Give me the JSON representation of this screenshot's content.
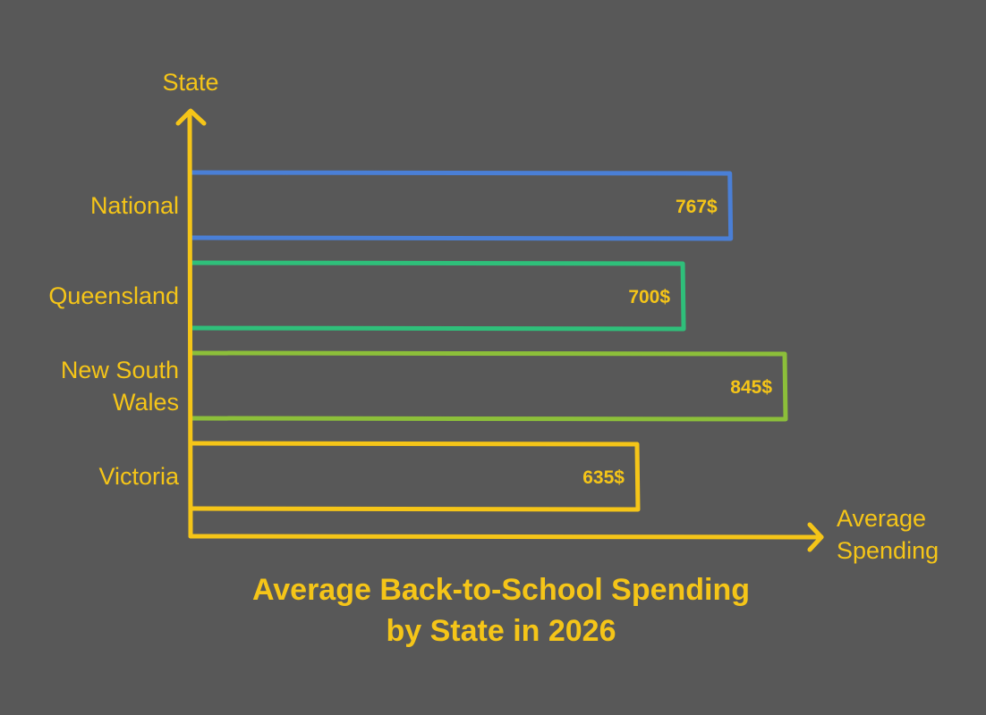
{
  "chart_data": {
    "type": "bar",
    "orientation": "horizontal",
    "title_lines": [
      "Average Back-to-School Spending",
      "by State in 2026"
    ],
    "ylabel": "State",
    "xlabel_lines": [
      "Average",
      "Spending"
    ],
    "categories": [
      {
        "label_lines": [
          "National"
        ],
        "value": 767,
        "value_label": "767$",
        "color": "#4a7fd6"
      },
      {
        "label_lines": [
          "Queensland"
        ],
        "value": 700,
        "value_label": "700$",
        "color": "#2fbf7a"
      },
      {
        "label_lines": [
          "New South",
          "Wales"
        ],
        "value": 845,
        "value_label": "845$",
        "color": "#8cbf3a"
      },
      {
        "label_lines": [
          "Victoria"
        ],
        "value": 635,
        "value_label": "635$",
        "color": "#f5c518"
      }
    ],
    "axis_color": "#f5c518",
    "text_color": "#f5c518",
    "background": "#585858",
    "grid": false,
    "legend": "none"
  }
}
